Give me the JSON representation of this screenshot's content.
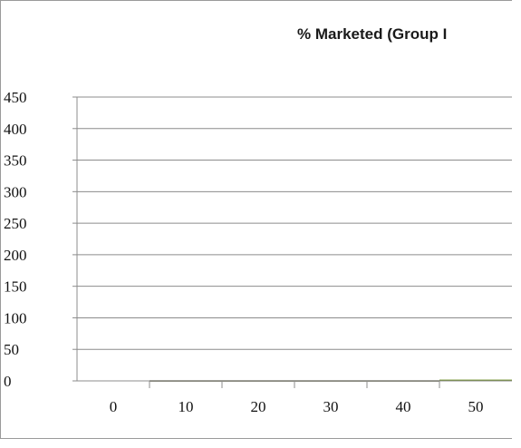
{
  "chart_data": {
    "type": "bar",
    "title": "% Marketed (Group I",
    "xlabel": "",
    "ylabel": "",
    "categories": [
      "0",
      "10",
      "20",
      "30",
      "40",
      "50"
    ],
    "series": [
      {
        "values": [
          0,
          1,
          1,
          1,
          1,
          2
        ],
        "colors": [
          "#3a3a1a",
          "#3a3a1a",
          "#3a3a1a",
          "#3a3a1a",
          "#3a3a1a",
          "#6b8e23"
        ]
      }
    ],
    "ylim": [
      0,
      450
    ],
    "yticks": [
      0,
      50,
      100,
      150,
      200,
      250,
      300,
      350,
      400,
      450
    ],
    "grid": true,
    "colors": {
      "gridline": "#8c8c8c",
      "axis": "#8c8c8c",
      "frame": "#9a9a9a"
    }
  }
}
